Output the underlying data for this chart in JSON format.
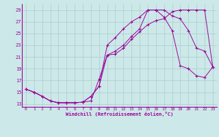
{
  "xlabel": "Windchill (Refroidissement éolien,°C)",
  "bg_color": "#cce8e8",
  "line_color": "#990099",
  "grid_color": "#aacccc",
  "xlim": [
    -0.5,
    23.5
  ],
  "ylim": [
    12.5,
    30.0
  ],
  "xticks": [
    0,
    1,
    2,
    3,
    4,
    5,
    6,
    7,
    8,
    9,
    10,
    11,
    12,
    13,
    14,
    15,
    16,
    17,
    18,
    19,
    20,
    21,
    22,
    23
  ],
  "yticks": [
    13,
    15,
    17,
    19,
    21,
    23,
    25,
    27,
    29
  ],
  "line1_x": [
    0,
    1,
    2,
    3,
    4,
    5,
    6,
    7,
    8,
    9,
    10,
    11,
    12,
    13,
    14,
    15,
    16,
    17,
    18,
    19,
    20,
    21,
    22,
    23
  ],
  "line1_y": [
    15.5,
    15.0,
    14.3,
    13.5,
    13.2,
    13.2,
    13.2,
    13.3,
    13.5,
    17.2,
    21.3,
    21.5,
    22.5,
    24.0,
    25.3,
    26.5,
    27.2,
    27.5,
    28.7,
    29.0,
    29.0,
    29.0,
    29.0,
    19.3
  ],
  "line2_x": [
    0,
    1,
    2,
    3,
    4,
    5,
    6,
    7,
    8,
    9,
    10,
    11,
    12,
    13,
    14,
    15,
    16,
    17,
    18,
    19,
    20,
    21,
    22,
    23
  ],
  "line2_y": [
    15.5,
    15.0,
    14.3,
    13.5,
    13.2,
    13.2,
    13.2,
    13.3,
    14.3,
    16.0,
    23.0,
    24.3,
    25.8,
    27.0,
    27.8,
    29.0,
    29.0,
    29.0,
    28.0,
    27.5,
    25.5,
    22.5,
    22.0,
    19.3
  ],
  "line3_x": [
    0,
    1,
    2,
    3,
    4,
    5,
    6,
    7,
    8,
    9,
    10,
    11,
    12,
    13,
    14,
    15,
    16,
    17,
    18,
    19,
    20,
    21,
    22,
    23
  ],
  "line3_y": [
    15.5,
    15.0,
    14.3,
    13.5,
    13.2,
    13.2,
    13.2,
    13.3,
    14.3,
    16.0,
    21.3,
    22.0,
    23.0,
    24.5,
    25.8,
    29.0,
    29.0,
    27.8,
    25.5,
    19.5,
    19.0,
    17.8,
    17.5,
    19.3
  ]
}
